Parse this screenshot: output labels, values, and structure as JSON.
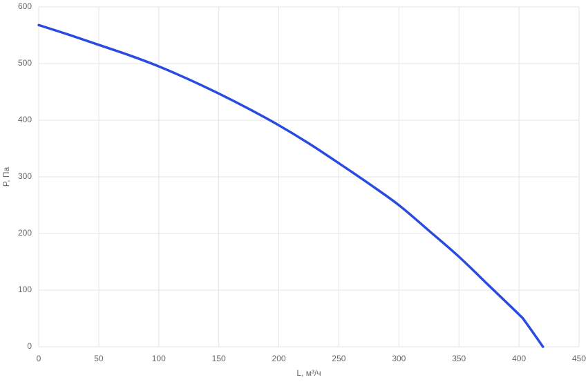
{
  "chart_data": {
    "type": "line",
    "x_label": "L, м³/ч",
    "y_label": "P, Па",
    "x": [
      0,
      25,
      50,
      75,
      100,
      125,
      150,
      175,
      200,
      225,
      250,
      275,
      300,
      325,
      350,
      375,
      400,
      405,
      420
    ],
    "values": [
      568,
      551,
      533,
      515,
      495,
      472,
      447,
      420,
      391,
      359,
      324,
      288,
      250,
      205,
      159,
      108,
      57,
      45,
      0
    ],
    "color": "#2a4be0",
    "xlim": [
      0,
      450
    ],
    "xticks": [
      0,
      50,
      100,
      150,
      200,
      250,
      300,
      350,
      400,
      450
    ],
    "ylim": [
      0,
      600
    ],
    "yticks": [
      0,
      100,
      200,
      300,
      400,
      500,
      600
    ],
    "grid": true
  }
}
